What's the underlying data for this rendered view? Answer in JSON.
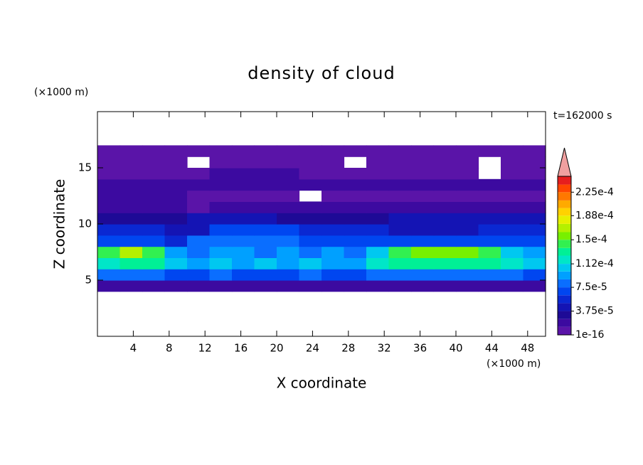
{
  "chart_data": {
    "type": "contour",
    "title": "density of cloud",
    "x_label": "X coordinate",
    "y_label": "Z coordinate",
    "x_unit": "(×1000 m)",
    "y_unit": "(×1000 m)",
    "annotation": "t=162000 s",
    "xlim": [
      0,
      50
    ],
    "ylim": [
      0,
      20
    ],
    "xticks": [
      4,
      8,
      12,
      16,
      20,
      24,
      28,
      32,
      36,
      40,
      44,
      48
    ],
    "yticks": [
      5,
      10,
      15
    ],
    "x": [
      1.25,
      3.75,
      6.25,
      8.75,
      11.25,
      13.75,
      16.25,
      18.75,
      21.25,
      23.75,
      26.25,
      28.75,
      31.25,
      33.75,
      36.25,
      38.75,
      41.25,
      43.75,
      46.25,
      48.75
    ],
    "y": [
      4.5,
      5.5,
      6.5,
      7.5,
      8.5,
      9.5,
      10.5,
      11.5,
      12.5,
      13.5,
      14.5,
      15.5,
      16.5
    ],
    "values": [
      [
        1.9e-05,
        1.9e-05,
        1.9e-05,
        1.9e-05,
        1.9e-05,
        1.9e-05,
        1.9e-05,
        1.9e-05,
        1.9e-05,
        1.9e-05,
        1.9e-05,
        1.9e-05,
        1.9e-05,
        1.9e-05,
        1.9e-05,
        1.9e-05,
        1.9e-05,
        1.9e-05,
        1.9e-05,
        1.9e-05
      ],
      [
        8.1e-05,
        8.1e-05,
        8.1e-05,
        6.9e-05,
        6.9e-05,
        8.1e-05,
        6.9e-05,
        6.9e-05,
        6.9e-05,
        8.1e-05,
        6.9e-05,
        6.9e-05,
        8.1e-05,
        8.1e-05,
        8.1e-05,
        8.1e-05,
        8.1e-05,
        8.1e-05,
        8.1e-05,
        6.9e-05
      ],
      [
        0.000119,
        0.000131,
        0.000131,
        0.000106,
        9.4e-05,
        0.000106,
        9.4e-05,
        0.000106,
        9.4e-05,
        0.000106,
        9.4e-05,
        9.4e-05,
        0.000119,
        0.000131,
        0.000131,
        0.000131,
        0.000131,
        0.000131,
        0.000119,
        0.000106
      ],
      [
        0.000144,
        0.000169,
        0.000144,
        9.4e-05,
        8.1e-05,
        9.4e-05,
        9.4e-05,
        8.1e-05,
        9.4e-05,
        8.1e-05,
        9.4e-05,
        8.1e-05,
        0.000106,
        0.000144,
        0.000156,
        0.000156,
        0.000156,
        0.000144,
        0.000106,
        9.4e-05
      ],
      [
        6.9e-05,
        6.9e-05,
        6.9e-05,
        5.6e-05,
        8.1e-05,
        8.1e-05,
        8.1e-05,
        8.1e-05,
        8.1e-05,
        6.9e-05,
        6.9e-05,
        6.9e-05,
        6.9e-05,
        6.9e-05,
        6.9e-05,
        6.9e-05,
        6.9e-05,
        6.9e-05,
        6.9e-05,
        6.9e-05
      ],
      [
        5.6e-05,
        5.6e-05,
        5.6e-05,
        4.4e-05,
        4.4e-05,
        6.9e-05,
        6.9e-05,
        6.9e-05,
        6.9e-05,
        5.6e-05,
        5.6e-05,
        5.6e-05,
        5.6e-05,
        4.4e-05,
        4.4e-05,
        4.4e-05,
        4.4e-05,
        5.6e-05,
        5.6e-05,
        5.6e-05
      ],
      [
        3.1e-05,
        3.1e-05,
        3.1e-05,
        3.1e-05,
        4.4e-05,
        4.4e-05,
        4.4e-05,
        4.4e-05,
        3.1e-05,
        3.1e-05,
        3.1e-05,
        3.1e-05,
        3.1e-05,
        4.4e-05,
        4.4e-05,
        4.4e-05,
        4.4e-05,
        4.4e-05,
        4.4e-05,
        4.4e-05
      ],
      [
        1.9e-05,
        1.9e-05,
        1.9e-05,
        1.9e-05,
        6e-06,
        1.9e-05,
        1.9e-05,
        1.9e-05,
        1.9e-05,
        1.9e-05,
        1.9e-05,
        1.9e-05,
        1.9e-05,
        1.9e-05,
        1.9e-05,
        1.9e-05,
        1.9e-05,
        1.9e-05,
        1.9e-05,
        1.9e-05
      ],
      [
        1.9e-05,
        1.9e-05,
        1.9e-05,
        1.9e-05,
        6e-06,
        6e-06,
        6e-06,
        6e-06,
        6e-06,
        null,
        6e-06,
        6e-06,
        6e-06,
        6e-06,
        6e-06,
        6e-06,
        6e-06,
        6e-06,
        6e-06,
        6e-06
      ],
      [
        1.9e-05,
        1.9e-05,
        1.9e-05,
        1.9e-05,
        1.9e-05,
        1.9e-05,
        1.9e-05,
        1.9e-05,
        1.9e-05,
        1.9e-05,
        1.9e-05,
        1.9e-05,
        1.9e-05,
        1.9e-05,
        1.9e-05,
        1.9e-05,
        1.9e-05,
        1.9e-05,
        1.9e-05,
        1.9e-05
      ],
      [
        6e-06,
        6e-06,
        6e-06,
        6e-06,
        6e-06,
        1.9e-05,
        1.9e-05,
        1.9e-05,
        1.9e-05,
        6e-06,
        6e-06,
        6e-06,
        6e-06,
        6e-06,
        6e-06,
        6e-06,
        6e-06,
        null,
        6e-06,
        6e-06
      ],
      [
        6e-06,
        6e-06,
        6e-06,
        6e-06,
        null,
        6e-06,
        6e-06,
        6e-06,
        6e-06,
        6e-06,
        6e-06,
        null,
        6e-06,
        6e-06,
        6e-06,
        6e-06,
        6e-06,
        null,
        6e-06,
        6e-06
      ],
      [
        6e-06,
        6e-06,
        6e-06,
        6e-06,
        6e-06,
        6e-06,
        6e-06,
        6e-06,
        6e-06,
        6e-06,
        6e-06,
        6e-06,
        6e-06,
        6e-06,
        6e-06,
        6e-06,
        6e-06,
        6e-06,
        6e-06,
        6e-06
      ]
    ],
    "colorbar": {
      "levels": [
        1e-16,
        1.25e-05,
        2.5e-05,
        3.75e-05,
        5e-05,
        6.25e-05,
        7.5e-05,
        8.75e-05,
        0.0001,
        0.000112,
        0.000125,
        0.000137,
        0.00015,
        0.000162,
        0.000175,
        0.000188,
        0.0002,
        0.000212,
        0.000225,
        0.000237,
        0.00025
      ],
      "colors": [
        "#5a14a8",
        "#3c0aa0",
        "#1e0a96",
        "#1414b4",
        "#0a28d2",
        "#0046f0",
        "#0a6eff",
        "#00a0ff",
        "#00c8f0",
        "#00e6c8",
        "#00f096",
        "#32f050",
        "#78f000",
        "#b4f000",
        "#e6f000",
        "#ffd200",
        "#ffaa00",
        "#ff7800",
        "#ff4600",
        "#e61e1e"
      ],
      "extend_color": "#f0a0a0",
      "ticks": [
        {
          "value": 1e-16,
          "label": "1e-16"
        },
        {
          "value": 3.75e-05,
          "label": "3.75e-5"
        },
        {
          "value": 7.5e-05,
          "label": "7.5e-5"
        },
        {
          "value": 0.000112,
          "label": "1.12e-4"
        },
        {
          "value": 0.00015,
          "label": "1.5e-4"
        },
        {
          "value": 0.000188,
          "label": "1.88e-4"
        },
        {
          "value": 0.000225,
          "label": "2.25e-4"
        }
      ]
    }
  }
}
